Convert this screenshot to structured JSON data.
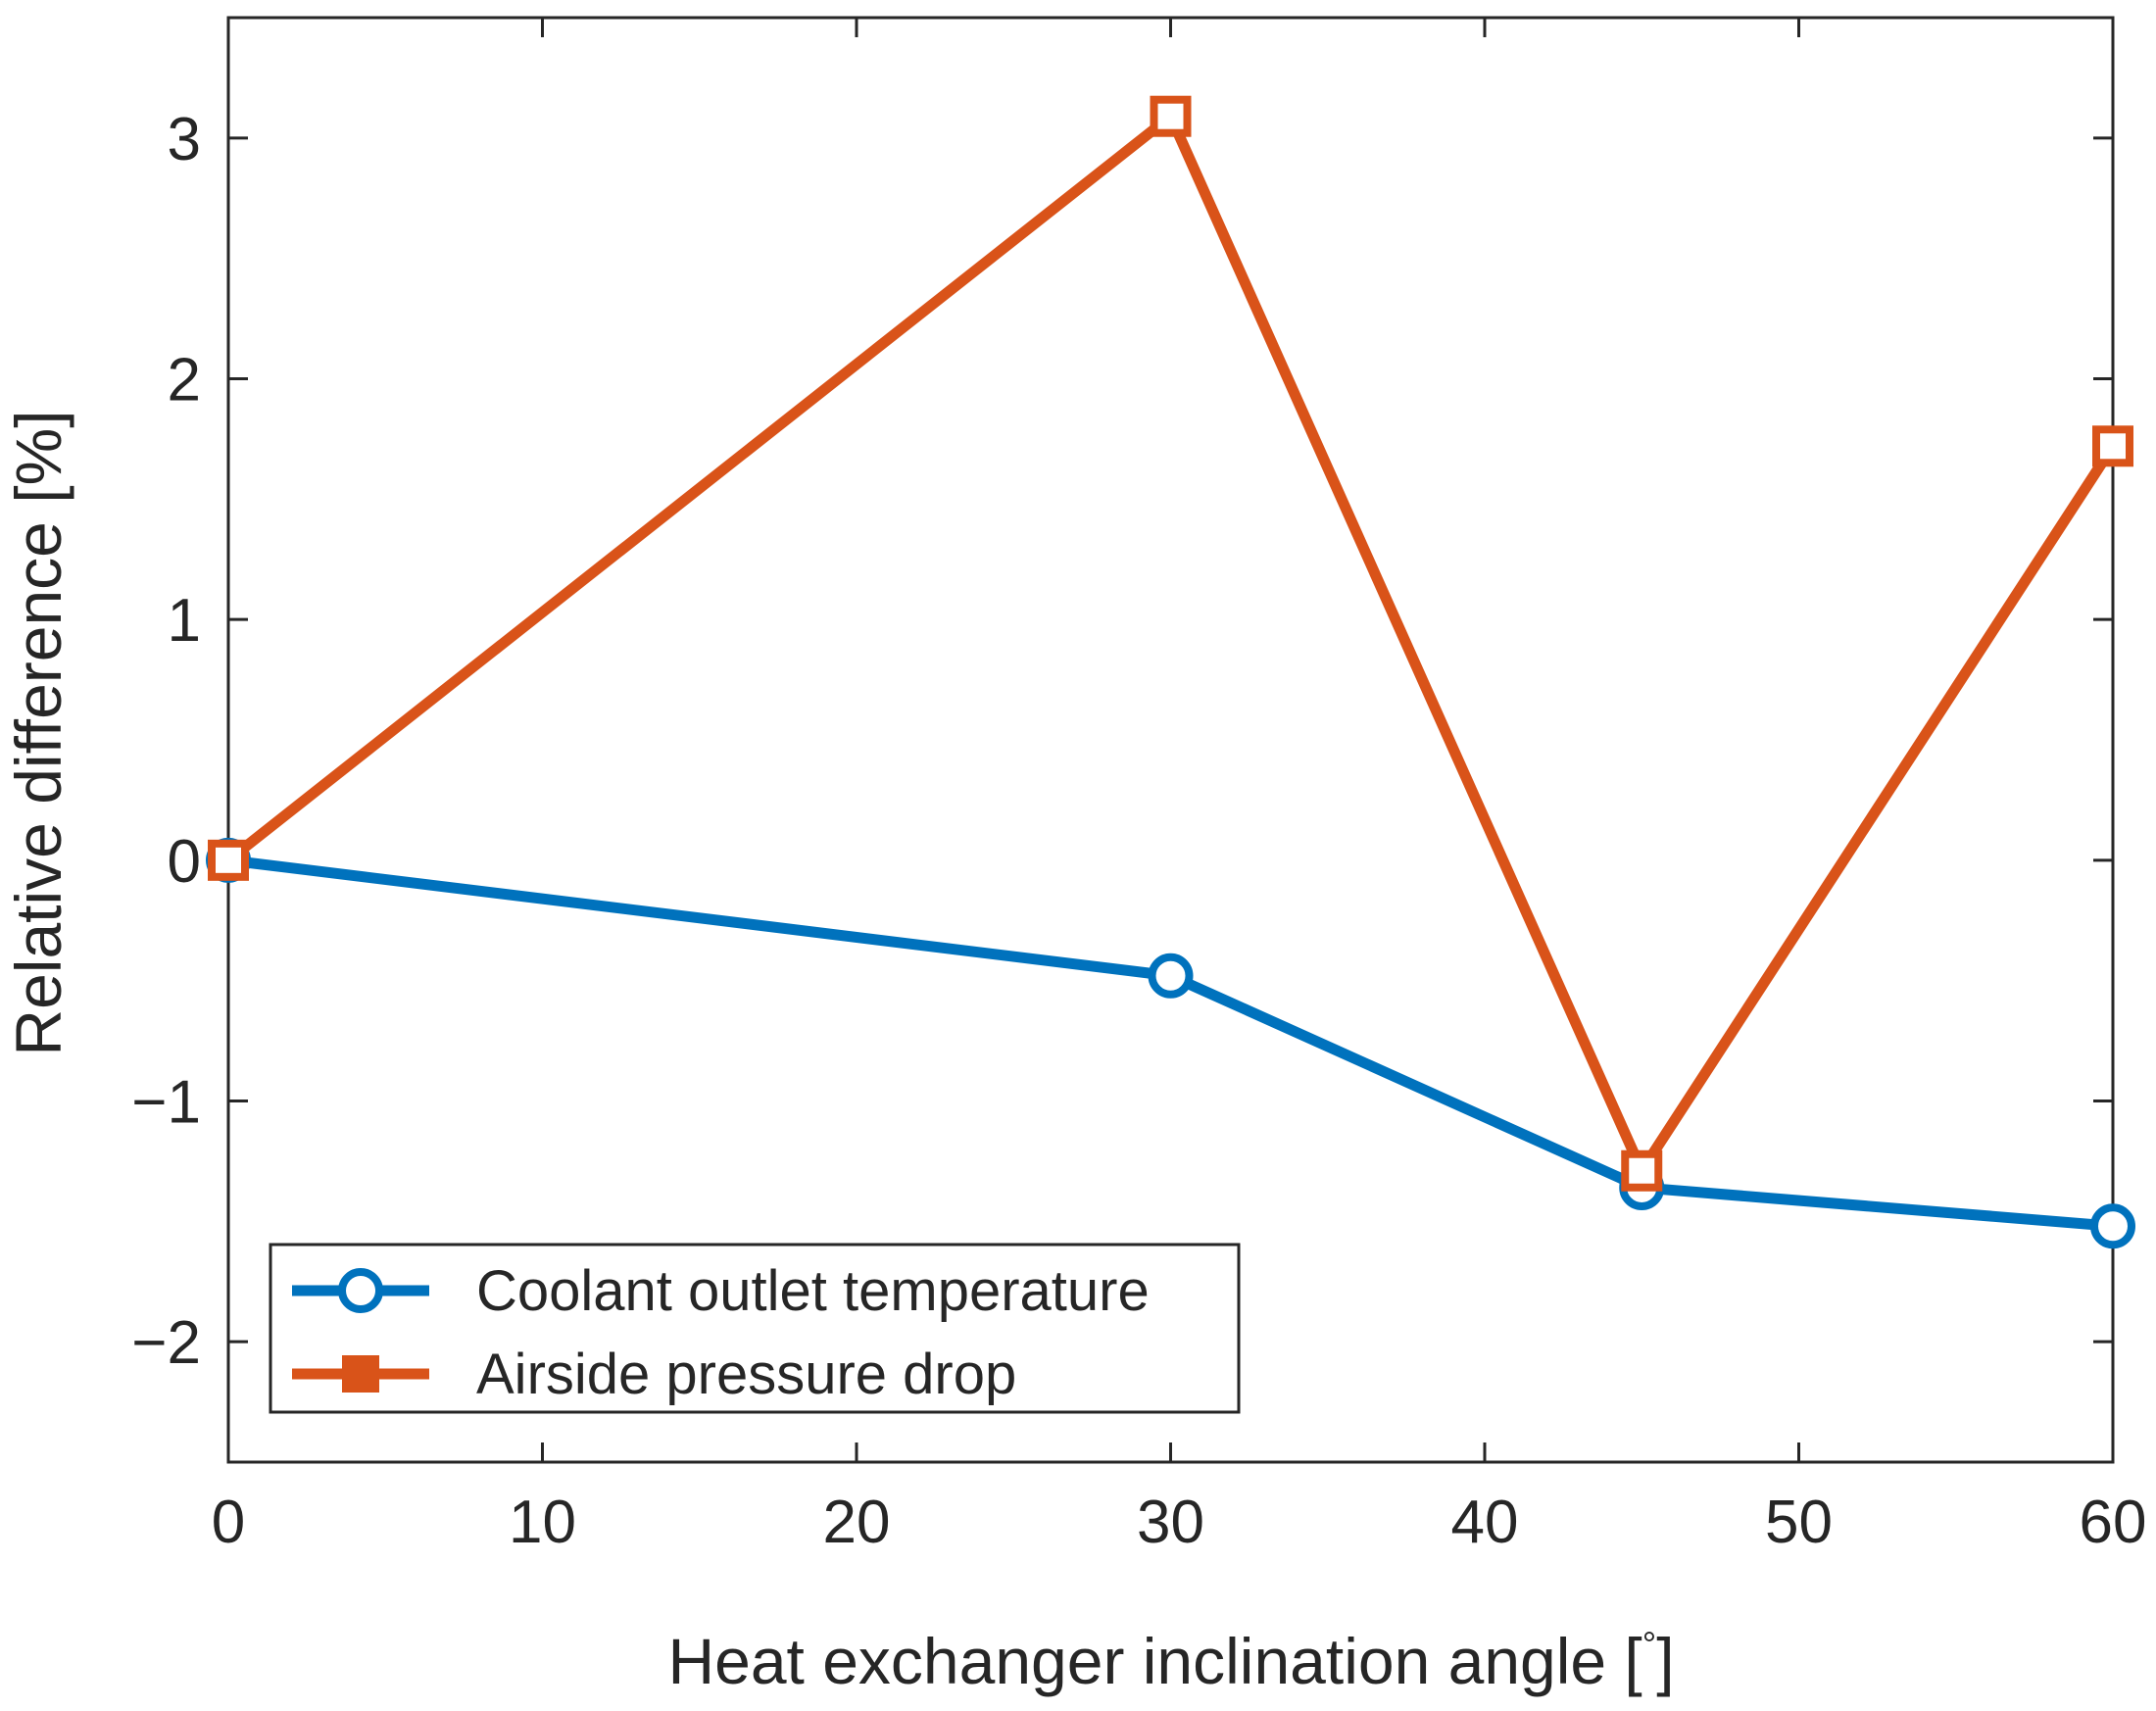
{
  "chart_data": {
    "type": "line",
    "title": "",
    "xlabel": "Heat exchanger inclination angle [",
    "xlabel_unit": "°",
    "xlabel_close": "]",
    "ylabel": "Relative difference [%]",
    "xlim": [
      0,
      60
    ],
    "ylim": [
      -2.5,
      3.5
    ],
    "xticks": [
      0,
      10,
      20,
      30,
      40,
      50,
      60
    ],
    "xtick_labels": [
      "0",
      "10",
      "20",
      "30",
      "40",
      "50",
      "60"
    ],
    "yticks": [
      -2,
      -1,
      0,
      1,
      2,
      3
    ],
    "ytick_labels": [
      "−2",
      "−1",
      "0",
      "1",
      "2",
      "3"
    ],
    "grid": false,
    "legend_position": "bottom-left",
    "x": [
      0,
      30,
      45,
      60
    ],
    "series": [
      {
        "name": "Coolant outlet temperature",
        "color": "#0072BD",
        "marker": "circle",
        "values": [
          0,
          -0.48,
          -1.36,
          -1.52
        ]
      },
      {
        "name": "Airside pressure drop",
        "color": "#D95319",
        "marker": "square",
        "values": [
          0,
          3.09,
          -1.29,
          1.72
        ]
      }
    ]
  }
}
